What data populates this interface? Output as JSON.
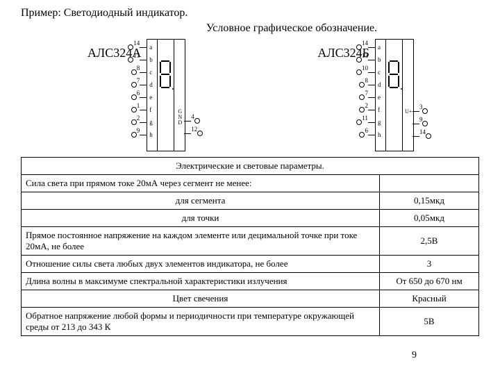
{
  "header": {
    "example": "Пример: Светодиодный индикатор.",
    "subtitle": "Условное графическое обозначение."
  },
  "chipA": {
    "label": "АЛС324А",
    "left_pins": [
      {
        "n": "14"
      },
      {
        "n": "13"
      },
      {
        "n": "8"
      },
      {
        "n": "7"
      },
      {
        "n": "6"
      },
      {
        "n": "1"
      },
      {
        "n": "2"
      },
      {
        "n": "9"
      }
    ],
    "letters": [
      "a",
      "b",
      "c",
      "d",
      "e",
      "f",
      "g",
      "h"
    ],
    "right_pins": [
      {
        "n": "4"
      },
      {
        "n": "12"
      }
    ],
    "gnd": "GND"
  },
  "chipB": {
    "label": "АЛС324Б",
    "left_pins": [
      {
        "n": "14"
      },
      {
        "n": "13"
      },
      {
        "n": "10"
      },
      {
        "n": "8"
      },
      {
        "n": "7"
      },
      {
        "n": "2"
      },
      {
        "n": "11"
      },
      {
        "n": "6"
      }
    ],
    "letters": [
      "a",
      "b",
      "c",
      "d",
      "e",
      "f",
      "g",
      "h"
    ],
    "right_pins": [
      {
        "n": "3"
      },
      {
        "n": "9"
      },
      {
        "n": "14"
      }
    ],
    "gnd": "U+"
  },
  "table": {
    "caption": "Электрические и световые параметры.",
    "rows": [
      {
        "p": "Сила света при прямом токе 20мА через сегмент не менее:",
        "v": ""
      },
      {
        "p": "для сегмента",
        "v": "0,15мкд",
        "pc": true
      },
      {
        "p": "для точки",
        "v": "0,05мкд",
        "pc": true
      },
      {
        "p": "Прямое постоянное напряжение на каждом элементе или децимальной точке при токе 20мА, не более",
        "v": "2,5В"
      },
      {
        "p": "Отношение силы света любых двух элементов индикатора, не более",
        "v": "3"
      },
      {
        "p": "Длина волны в максимуме спектральной характеристики излучения",
        "v": "От 650 до 670 нм"
      },
      {
        "p": "Цвет свечения",
        "v": "Красный",
        "pc": true
      },
      {
        "p": "Обратное напряжение любой формы и периодичности при температуре окружающей среды от 213 до 343 К",
        "v": "5В"
      }
    ]
  },
  "page_num": "9",
  "style": {
    "chip_body_w": 54,
    "pin_spacing": 18,
    "colors": {
      "bg": "#ffffff",
      "fg": "#000000"
    }
  }
}
